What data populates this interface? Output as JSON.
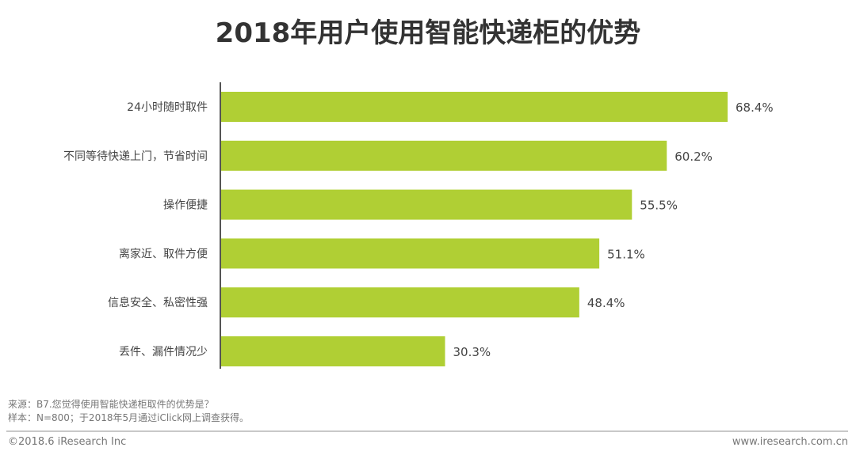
{
  "chart_data": {
    "type": "bar",
    "orientation": "horizontal",
    "title": "2018年用户使用智能快递柜的优势",
    "categories": [
      "24小时随时取件",
      "不同等待快递上门，节省时间",
      "操作便捷",
      "离家近、取件方便",
      "信息安全、私密性强",
      "丢件、漏件情况少"
    ],
    "values": [
      68.4,
      60.2,
      55.5,
      51.1,
      48.4,
      30.3
    ],
    "labels": [
      "68.4%",
      "60.2%",
      "55.5%",
      "51.1%",
      "48.4%",
      "30.3%"
    ],
    "unit": "%",
    "xlim": [
      0,
      70
    ],
    "grid": false,
    "bar_color": "#B0CF34"
  },
  "notes": {
    "source": "来源：B7.您觉得使用智能快递柜取件的优势是？",
    "sample": "样本：N=800；于2018年5月通过iClick网上调查获得。"
  },
  "footer": {
    "copyright": "©2018.6 iResearch Inc",
    "website": "www.iresearch.com.cn"
  }
}
